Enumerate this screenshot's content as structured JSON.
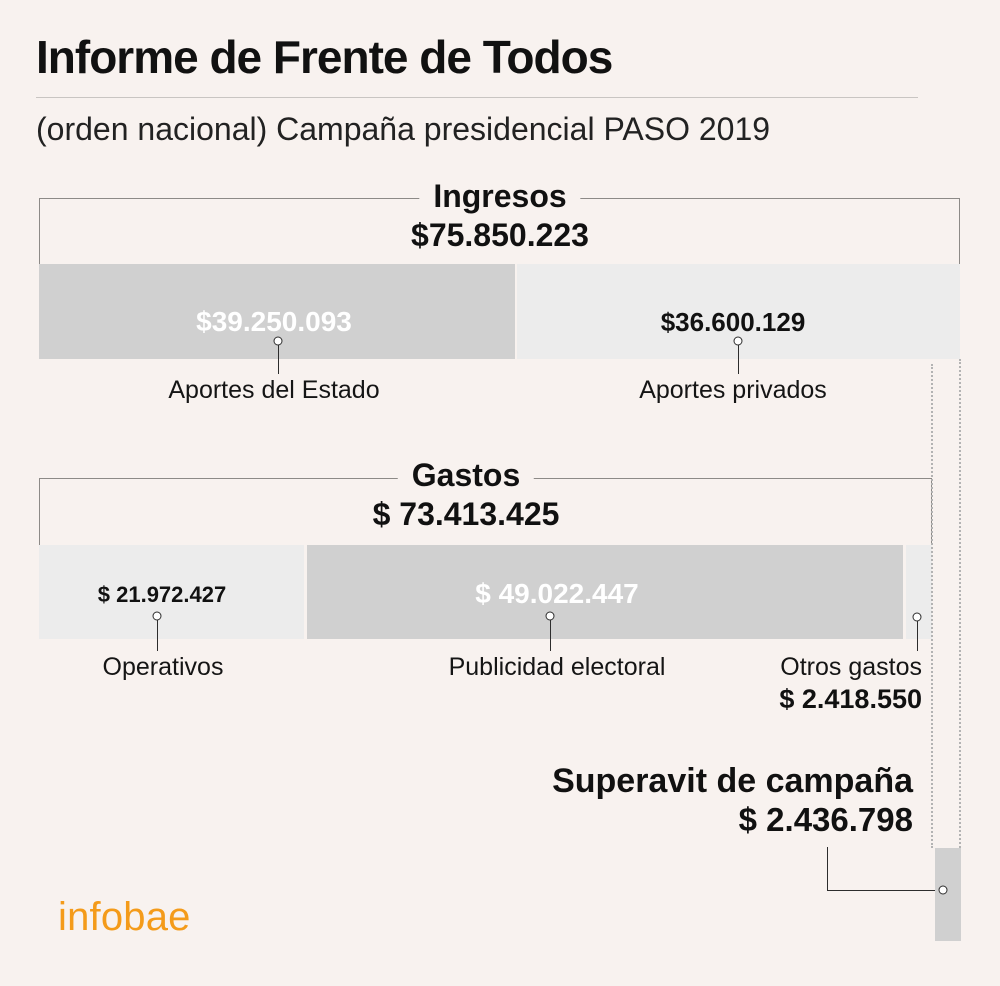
{
  "title": "Informe de Frente de Todos",
  "subtitle": "(orden nacional) Campaña presidencial PASO 2019",
  "brand": "infobae",
  "colors": {
    "background": "#f8f2ef",
    "bar_dark": "#d0d0d0",
    "bar_light": "#ececec",
    "brand": "#f49b1a"
  },
  "chart_data": {
    "type": "bar",
    "sections": [
      {
        "name": "Ingresos",
        "total_label": "$75.850.223",
        "total": 75850223,
        "segments": [
          {
            "label": "Aportes del Estado",
            "value": 39250093,
            "display": "$39.250.093"
          },
          {
            "label": "Aportes privados",
            "value": 36600129,
            "display": "$36.600.129"
          }
        ]
      },
      {
        "name": "Gastos",
        "total_label": "$ 73.413.425",
        "total": 73413425,
        "segments": [
          {
            "label": "Operativos",
            "value": 21972427,
            "display": "$ 21.972.427"
          },
          {
            "label": "Publicidad electoral",
            "value": 49022447,
            "display": "$ 49.022.447"
          },
          {
            "label": "Otros gastos",
            "value": 2418550,
            "display": "$ 2.418.550"
          }
        ]
      }
    ],
    "surplus": {
      "label": "Superavit de campaña",
      "value": 2436798,
      "display": "$ 2.436.798"
    }
  }
}
